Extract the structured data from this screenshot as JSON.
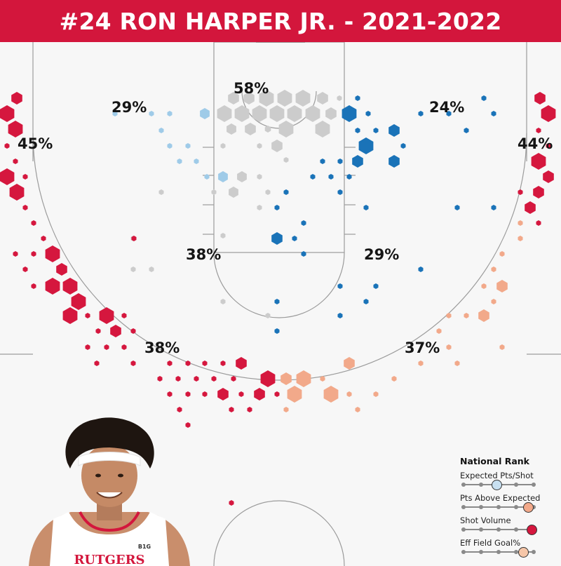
{
  "header": {
    "title": "#24 RON HARPER JR. - 2021-2022",
    "background_color": "#d3163c",
    "text_color": "#ffffff"
  },
  "chart_data": {
    "type": "hexbin shot chart",
    "grid": false,
    "legend_placement": "bottom-right",
    "color_scale": {
      "red": "#d5173e",
      "light_red": "#f2a98a",
      "gray": "#cccccc",
      "light_blue": "#9fcbe8",
      "blue": "#1a73b8"
    },
    "zones": [
      {
        "id": "paint",
        "percent": "58%",
        "color": "gray"
      },
      {
        "id": "short-mid-left",
        "percent": "29%",
        "color": "light_blue"
      },
      {
        "id": "short-mid-right",
        "percent": "24%",
        "color": "blue"
      },
      {
        "id": "left-corner-three",
        "percent": "45%",
        "color": "red"
      },
      {
        "id": "right-corner-three",
        "percent": "44%",
        "color": "red"
      },
      {
        "id": "long-mid-left",
        "percent": "38%",
        "color": "gray"
      },
      {
        "id": "long-mid-right",
        "percent": "29%",
        "color": "blue"
      },
      {
        "id": "left-wing-three",
        "percent": "38%",
        "color": "red"
      },
      {
        "id": "right-wing-three",
        "percent": "37%",
        "color": "light_red"
      }
    ],
    "legend": {
      "title": "National Rank",
      "items": [
        {
          "label": "Expected Pts/Shot",
          "level": 0.5,
          "color": "#c8e0f1"
        },
        {
          "label": "Pts Above Expected",
          "level": 0.95,
          "color": "#f2a98a"
        },
        {
          "label": "Shot Volume",
          "level": 1.0,
          "color": "#d5173e"
        },
        {
          "label": "Eff Field Goal%",
          "level": 0.88,
          "color": "#f6c6a8"
        }
      ]
    }
  },
  "photo": {
    "jersey_text": "RUTGERS",
    "jersey_badge": "B1G"
  }
}
